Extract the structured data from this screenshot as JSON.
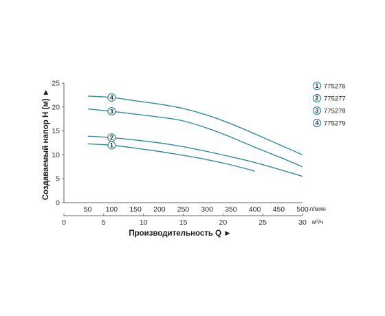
{
  "chart_data": {
    "type": "line",
    "ylabel": "Создаваемый напор H (м) ►",
    "xlabel": "Производительность Q ►",
    "x_units_primary": "л/мин",
    "x_units_secondary": "м³/ч",
    "ylim": [
      0,
      25
    ],
    "xlim_lmin": [
      0,
      500
    ],
    "xlim_m3h": [
      0,
      30
    ],
    "y_ticks": [
      0,
      5,
      10,
      15,
      20,
      25
    ],
    "x_ticks_lmin": [
      50,
      100,
      150,
      200,
      250,
      300,
      350,
      400,
      450,
      500
    ],
    "x_ticks_m3h": [
      0,
      5,
      10,
      15,
      20,
      25,
      30
    ],
    "grid": false,
    "line_color": "#2e8b9e",
    "legend_position": "right",
    "series": [
      {
        "name": "775276",
        "marker": "1",
        "x": [
          50,
          100,
          150,
          200,
          250,
          300,
          350,
          400
        ],
        "y": [
          12.3,
          12.0,
          11.4,
          10.7,
          9.9,
          9.0,
          7.9,
          6.6
        ],
        "marker_x": 100
      },
      {
        "name": "775277",
        "marker": "2",
        "x": [
          50,
          100,
          150,
          200,
          250,
          300,
          350,
          400,
          450,
          500
        ],
        "y": [
          13.9,
          13.6,
          13.1,
          12.5,
          11.7,
          10.7,
          9.6,
          8.4,
          7.0,
          5.5
        ],
        "marker_x": 100
      },
      {
        "name": "775278",
        "marker": "3",
        "x": [
          50,
          100,
          150,
          200,
          250,
          300,
          350,
          400,
          450,
          500
        ],
        "y": [
          19.6,
          19.1,
          18.5,
          17.9,
          17.1,
          15.6,
          13.7,
          11.6,
          9.6,
          7.5
        ],
        "marker_x": 100
      },
      {
        "name": "775279",
        "marker": "4",
        "x": [
          50,
          100,
          150,
          200,
          250,
          300,
          350,
          400,
          450,
          500
        ],
        "y": [
          22.3,
          22.0,
          21.3,
          20.6,
          19.7,
          18.3,
          16.5,
          14.4,
          12.2,
          10.0
        ],
        "marker_x": 100
      }
    ]
  }
}
